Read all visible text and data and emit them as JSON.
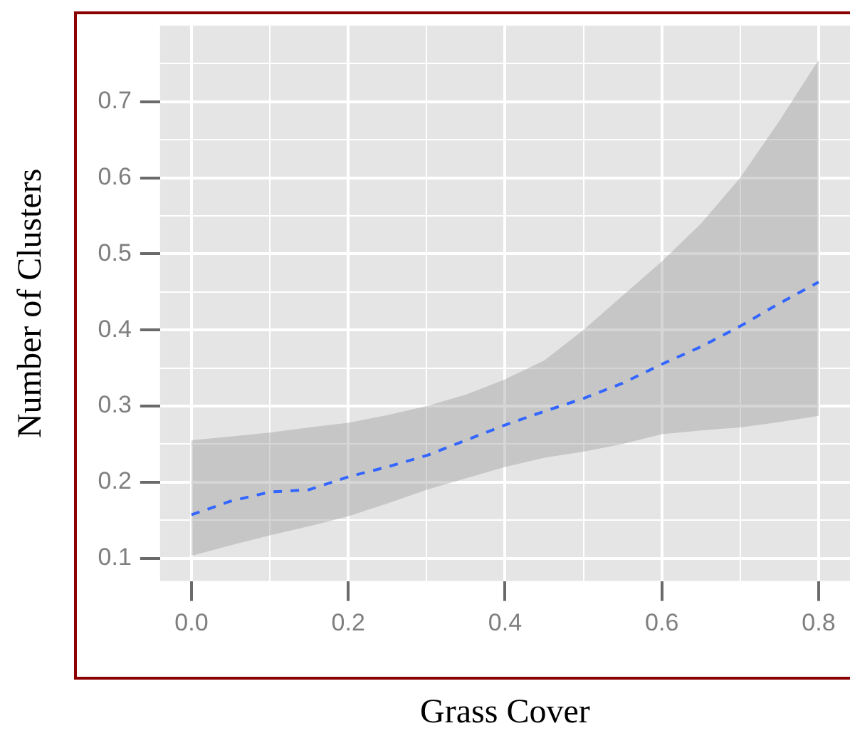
{
  "chart_data": {
    "type": "line",
    "xlabel": "Grass Cover",
    "ylabel": "Number of Clusters",
    "x": [
      0,
      0.05,
      0.1,
      0.15,
      0.2,
      0.25,
      0.3,
      0.35,
      0.4,
      0.45,
      0.5,
      0.55,
      0.6,
      0.65,
      0.7,
      0.75,
      0.8
    ],
    "series": [
      {
        "color": "#3366ff",
        "values": [
          0.157,
          0.175,
          0.187,
          0.19,
          0.207,
          0.22,
          0.235,
          0.255,
          0.275,
          0.293,
          0.31,
          0.33,
          0.355,
          0.378,
          0.405,
          0.435,
          0.463
        ],
        "lower": [
          0.103,
          0.117,
          0.13,
          0.142,
          0.155,
          0.172,
          0.19,
          0.205,
          0.22,
          0.232,
          0.24,
          0.25,
          0.263,
          0.268,
          0.272,
          0.279,
          0.287
        ],
        "upper": [
          0.255,
          0.26,
          0.265,
          0.272,
          0.278,
          0.288,
          0.3,
          0.315,
          0.335,
          0.36,
          0.4,
          0.445,
          0.49,
          0.54,
          0.6,
          0.675,
          0.755
        ]
      }
    ],
    "xlim": [
      -0.04,
      0.84
    ],
    "ylim": [
      0.07,
      0.8
    ],
    "xticks": [
      {
        "value": 0,
        "label": "0.0"
      },
      {
        "value": 0.1,
        "label": null
      },
      0.2,
      {
        "value": 0.3,
        "label": null
      },
      0.4,
      {
        "value": 0.5,
        "label": null
      },
      0.6,
      {
        "value": 0.7,
        "label": null
      },
      0.8
    ],
    "yticks": [
      0.1,
      {
        "value": 0.15,
        "label": null
      },
      0.2,
      {
        "value": 0.25,
        "label": null
      },
      0.3,
      {
        "value": 0.35,
        "label": null
      },
      0.4,
      {
        "value": 0.45,
        "label": null
      },
      0.5,
      {
        "value": 0.55,
        "label": null
      },
      0.6,
      {
        "value": 0.65,
        "label": null
      },
      0.7,
      {
        "value": 0.75,
        "label": null
      }
    ],
    "grid": true,
    "marker": "none",
    "line_style": "dashed"
  }
}
